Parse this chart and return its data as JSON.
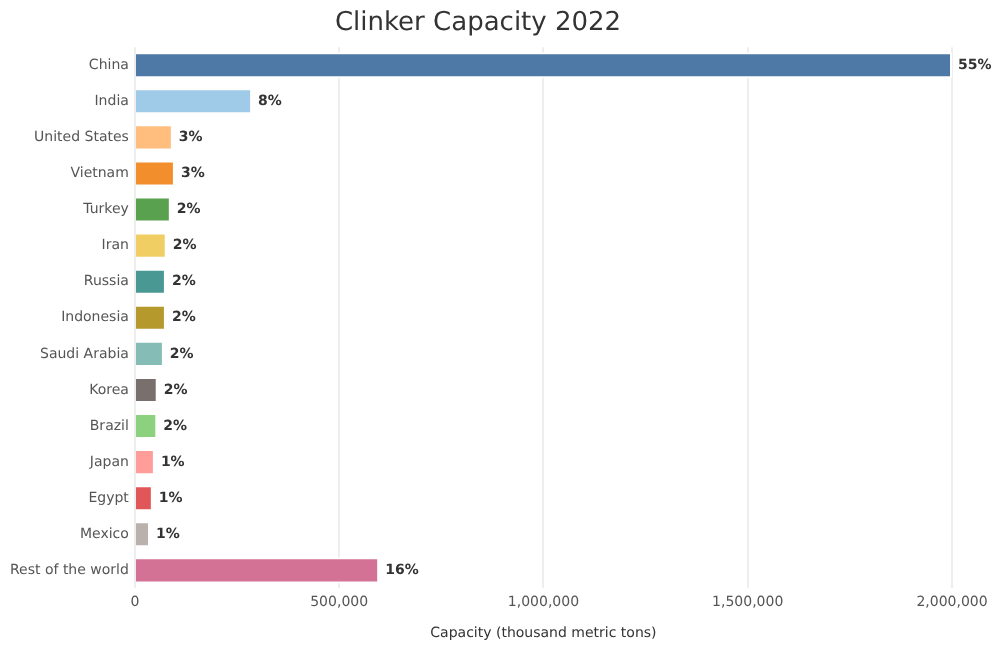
{
  "chart_data": {
    "type": "bar",
    "orientation": "horizontal",
    "title": "Clinker Capacity 2022",
    "xlabel": "Capacity (thousand metric tons)",
    "categories": [
      "China",
      "India",
      "United States",
      "Vietnam",
      "Turkey",
      "Iran",
      "Russia",
      "Indonesia",
      "Saudi Arabia",
      "Korea",
      "Brazil",
      "Japan",
      "Egypt",
      "Mexico",
      "Rest of the world"
    ],
    "values": [
      2000000,
      287000,
      93000,
      98000,
      88000,
      78000,
      76000,
      76000,
      71000,
      56000,
      55000,
      49000,
      44000,
      37000,
      598000
    ],
    "colors": [
      "#4e79a7",
      "#a0cbe8",
      "#ffbe7d",
      "#f28e2b",
      "#59a14f",
      "#f1ce63",
      "#499894",
      "#b6992d",
      "#86bcb6",
      "#79706e",
      "#8cd17d",
      "#ff9d9a",
      "#e15759",
      "#bab0ac",
      "#d37295"
    ],
    "annotations": [
      {
        "text": "55%",
        "x": 2000000,
        "y": "China"
      },
      {
        "text": "8%",
        "x": 287000,
        "y": "India"
      },
      {
        "text": "3%",
        "x": 93000,
        "y": "United States"
      },
      {
        "text": "3%",
        "x": 98000,
        "y": "Vietnam"
      },
      {
        "text": "2%",
        "x": 88000,
        "y": "Turkey"
      },
      {
        "text": "2%",
        "x": 78000,
        "y": "Iran"
      },
      {
        "text": "2%",
        "x": 76000,
        "y": "Russia"
      },
      {
        "text": "2%",
        "x": 76000,
        "y": "Indonesia"
      },
      {
        "text": "2%",
        "x": 71000,
        "y": "Saudi Arabia"
      },
      {
        "text": "2%",
        "x": 56000,
        "y": "Korea"
      },
      {
        "text": "2%",
        "x": 55000,
        "y": "Brazil"
      },
      {
        "text": "1%",
        "x": 49000,
        "y": "Japan"
      },
      {
        "text": "1%",
        "x": 44000,
        "y": "Egypt"
      },
      {
        "text": "1%",
        "x": 37000,
        "y": "Mexico"
      },
      {
        "text": "16%",
        "x": 598000,
        "y": "Rest of the world"
      }
    ],
    "xlim": [
      0,
      2000000
    ],
    "xticks": [
      {
        "value": 0,
        "label": "0"
      },
      {
        "value": 500000,
        "label": "500,000"
      },
      {
        "value": 1000000,
        "label": "1,000,000"
      },
      {
        "value": 1500000,
        "label": "1,500,000"
      },
      {
        "value": 2000000,
        "label": "2,000,000"
      }
    ],
    "grid": "x",
    "legend": false
  }
}
